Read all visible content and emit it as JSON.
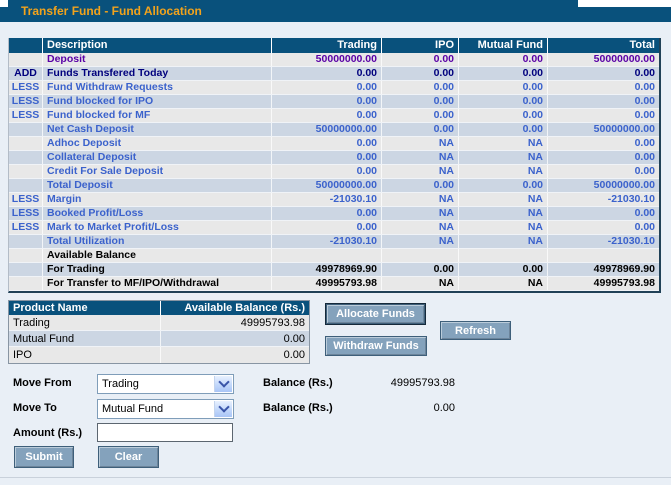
{
  "title": "Transfer Fund - Fund Allocation",
  "allocation_table": {
    "headers": {
      "prefix": "",
      "description": "Description",
      "trading": "Trading",
      "ipo": "IPO",
      "mutual_fund": "Mutual Fund",
      "total": "Total"
    },
    "rows": [
      {
        "prefix": "",
        "description": "Deposit",
        "trading": "50000000.00",
        "ipo": "0.00",
        "mutual_fund": "0.00",
        "total": "50000000.00",
        "text_class": "purple"
      },
      {
        "prefix": "ADD",
        "description": "Funds Transfered Today",
        "trading": "0.00",
        "ipo": "0.00",
        "mutual_fund": "0.00",
        "total": "0.00",
        "text_class": "navy"
      },
      {
        "prefix": "LESS",
        "description": "Fund Withdraw Requests",
        "trading": "0.00",
        "ipo": "0.00",
        "mutual_fund": "0.00",
        "total": "0.00",
        "text_class": "blue"
      },
      {
        "prefix": "LESS",
        "description": "Fund blocked for IPO",
        "trading": "0.00",
        "ipo": "0.00",
        "mutual_fund": "0.00",
        "total": "0.00",
        "text_class": "blue"
      },
      {
        "prefix": "LESS",
        "description": "Fund blocked for MF",
        "trading": "0.00",
        "ipo": "0.00",
        "mutual_fund": "0.00",
        "total": "0.00",
        "text_class": "blue"
      },
      {
        "prefix": "",
        "description": "Net Cash Deposit",
        "trading": "50000000.00",
        "ipo": "0.00",
        "mutual_fund": "0.00",
        "total": "50000000.00",
        "text_class": "blue"
      },
      {
        "prefix": "",
        "description": "Adhoc Deposit",
        "trading": "0.00",
        "ipo": "NA",
        "mutual_fund": "NA",
        "total": "0.00",
        "text_class": "blue"
      },
      {
        "prefix": "",
        "description": "Collateral Deposit",
        "trading": "0.00",
        "ipo": "NA",
        "mutual_fund": "NA",
        "total": "0.00",
        "text_class": "blue"
      },
      {
        "prefix": "",
        "description": "Credit For Sale Deposit",
        "trading": "0.00",
        "ipo": "NA",
        "mutual_fund": "NA",
        "total": "0.00",
        "text_class": "blue"
      },
      {
        "prefix": "",
        "description": "Total Deposit",
        "trading": "50000000.00",
        "ipo": "0.00",
        "mutual_fund": "0.00",
        "total": "50000000.00",
        "text_class": "blue"
      },
      {
        "prefix": "LESS",
        "description": "Margin",
        "trading": "-21030.10",
        "ipo": "NA",
        "mutual_fund": "NA",
        "total": "-21030.10",
        "text_class": "blue"
      },
      {
        "prefix": "LESS",
        "description": "Booked Profit/Loss",
        "trading": "0.00",
        "ipo": "NA",
        "mutual_fund": "NA",
        "total": "0.00",
        "text_class": "blue"
      },
      {
        "prefix": "LESS",
        "description": "Mark to Market Profit/Loss",
        "trading": "0.00",
        "ipo": "NA",
        "mutual_fund": "NA",
        "total": "0.00",
        "text_class": "blue"
      },
      {
        "prefix": "",
        "description": "Total Utilization",
        "trading": "-21030.10",
        "ipo": "NA",
        "mutual_fund": "NA",
        "total": "-21030.10",
        "text_class": "blue"
      },
      {
        "prefix": "",
        "description": "Available Balance",
        "trading": "",
        "ipo": "",
        "mutual_fund": "",
        "total": "",
        "text_class": "black"
      },
      {
        "prefix": "",
        "description": "For Trading",
        "trading": "49978969.90",
        "ipo": "0.00",
        "mutual_fund": "0.00",
        "total": "49978969.90",
        "text_class": "black"
      },
      {
        "prefix": "",
        "description": "For Transfer to MF/IPO/Withdrawal",
        "trading": "49995793.98",
        "ipo": "NA",
        "mutual_fund": "NA",
        "total": "49995793.98",
        "text_class": "black"
      }
    ]
  },
  "product_table": {
    "headers": {
      "name": "Product Name",
      "balance": "Available Balance (Rs.)"
    },
    "rows": [
      {
        "name": "Trading",
        "balance": "49995793.98"
      },
      {
        "name": "Mutual Fund",
        "balance": "0.00"
      },
      {
        "name": "IPO",
        "balance": "0.00"
      }
    ]
  },
  "buttons": {
    "allocate": "Allocate Funds",
    "refresh": "Refresh",
    "withdraw": "Withdraw Funds",
    "submit": "Submit",
    "clear": "Clear"
  },
  "transfer_form": {
    "move_from_label": "Move From",
    "move_from_value": "Trading",
    "move_to_label": "Move To",
    "move_to_value": "Mutual Fund",
    "balance_label": "Balance (Rs.)",
    "from_balance": "49995793.98",
    "to_balance": "0.00",
    "amount_label": "Amount (Rs.)",
    "amount_value": ""
  },
  "colors": {
    "header_blue": "#09517c",
    "title_orange": "#f2a31c",
    "row_light": "#e8e8e8",
    "row_alt": "#ccd6e3",
    "text_purple": "#5a00a5",
    "text_navy": "#00007d",
    "text_blue": "#3b62cc",
    "button_fill": "#84a2bc",
    "page_bg": "#e9eff6"
  }
}
